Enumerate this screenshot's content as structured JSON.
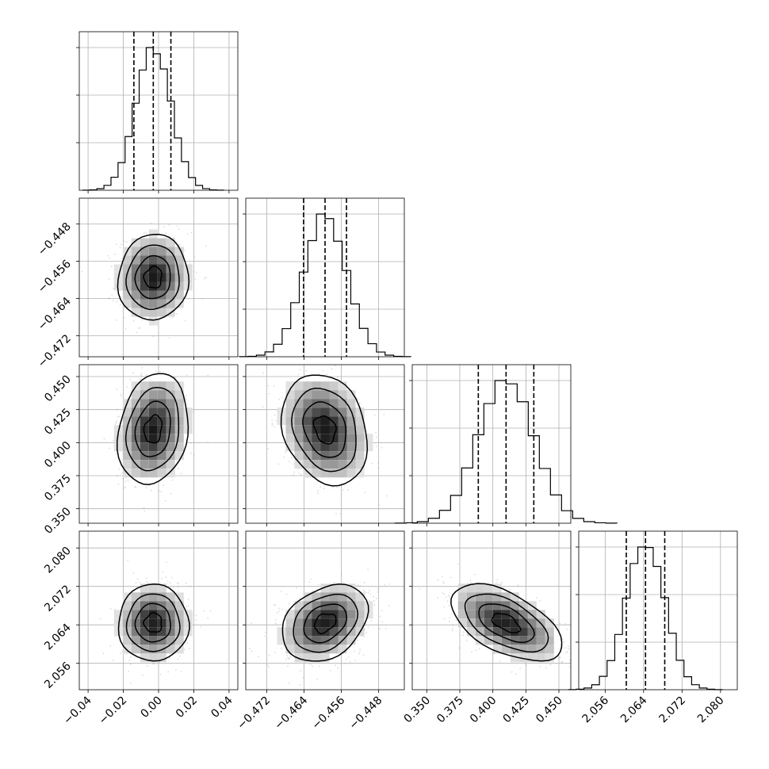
{
  "chart_data": {
    "type": "corner",
    "parameters": [
      {
        "ticks": [
          -0.04,
          -0.02,
          0.0,
          0.02,
          0.04
        ],
        "tick_labels": [
          "−0.04",
          "−0.02",
          "0.00",
          "0.02",
          "0.04"
        ],
        "range": [
          -0.045,
          0.045
        ],
        "median": -0.003,
        "q16": -0.014,
        "q84": 0.007,
        "sigma": 0.01
      },
      {
        "ticks": [
          -0.472,
          -0.464,
          -0.456,
          -0.448
        ],
        "tick_labels": [
          "−0.472",
          "−0.464",
          "−0.456",
          "−0.448"
        ],
        "range": [
          -0.4765,
          -0.4425
        ],
        "median": -0.4595,
        "q16": -0.4641,
        "q84": -0.4549,
        "sigma": 0.0046
      },
      {
        "ticks": [
          0.35,
          0.375,
          0.4,
          0.425,
          0.45
        ],
        "tick_labels": [
          "0.350",
          "0.375",
          "0.400",
          "0.425",
          "0.450"
        ],
        "range": [
          0.339,
          0.459
        ],
        "median": 0.41,
        "q16": 0.389,
        "q84": 0.431,
        "sigma": 0.021
      },
      {
        "ticks": [
          2.056,
          2.064,
          2.072,
          2.08
        ],
        "tick_labels": [
          "2.056",
          "2.064",
          "2.072",
          "2.080"
        ],
        "range": [
          2.0505,
          2.0835
        ],
        "median": 2.0644,
        "q16": 2.0604,
        "q84": 2.0684,
        "sigma": 0.004
      }
    ],
    "correlations": [
      {
        "row": 1,
        "col": 0,
        "rho": 0.05
      },
      {
        "row": 2,
        "col": 0,
        "rho": 0.18
      },
      {
        "row": 2,
        "col": 1,
        "rho": -0.22
      },
      {
        "row": 3,
        "col": 0,
        "rho": 0.0
      },
      {
        "row": 3,
        "col": 1,
        "rho": 0.3
      },
      {
        "row": 3,
        "col": 2,
        "rho": -0.55
      }
    ],
    "hist_bins": 20,
    "contour_sigmas": [
      0.5,
      1.0,
      1.5,
      2.0
    ],
    "grid": true,
    "colors": {
      "points": "#9a9a9a",
      "density": "#000000",
      "lines": "#000000"
    }
  }
}
